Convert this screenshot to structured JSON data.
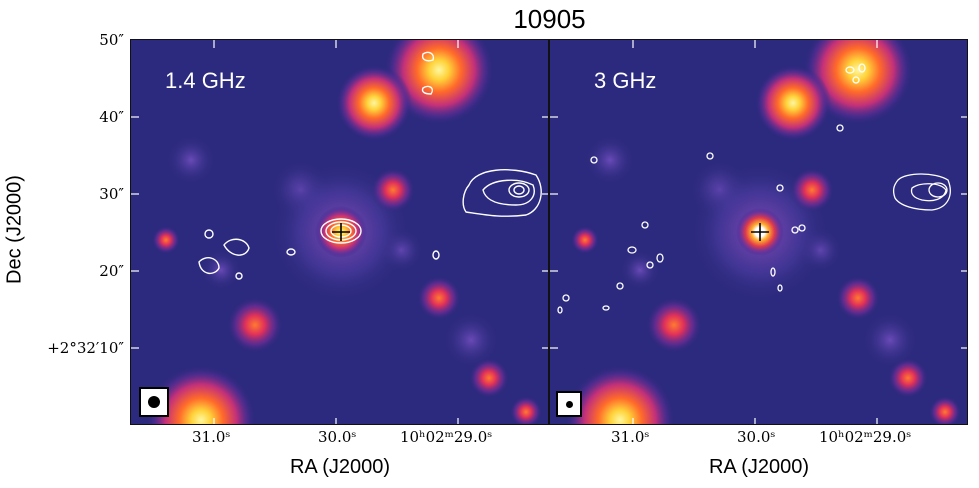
{
  "figure": {
    "title": "10905",
    "ylabel": "Dec (J2000)",
    "xlabel": "RA (J2000)",
    "yticks": [
      "50″",
      "40″",
      "30″",
      "20″",
      "+2°32′10″"
    ],
    "xticks": [
      "31.0ˢ",
      "30.0ˢ",
      "10ʰ02ᵐ29.0ˢ"
    ],
    "colors": {
      "background": "#2c2a7e",
      "source_core": "#ffd23a",
      "contour": "#ffffff"
    }
  },
  "panels": [
    {
      "label": "1.4 GHz",
      "beam": "large"
    },
    {
      "label": "3 GHz",
      "beam": "small"
    }
  ]
}
